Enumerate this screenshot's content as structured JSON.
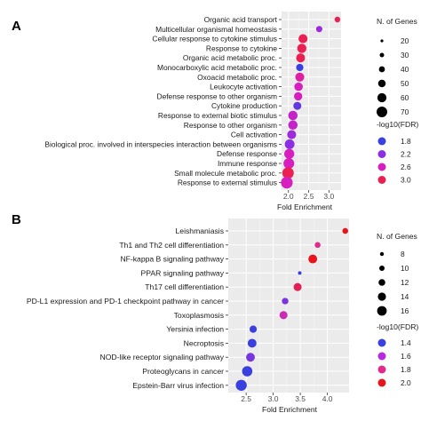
{
  "panels": [
    {
      "letter": "A"
    },
    {
      "letter": "B"
    }
  ],
  "chart_data": [
    {
      "type": "scatter",
      "panel": "A",
      "xlabel": "Fold Enrichment",
      "xticks": [
        2.0,
        2.5,
        3.0
      ],
      "xlim": [
        1.83,
        3.3
      ],
      "grid": true,
      "legend_position": "right",
      "categories": [
        "Organic acid transport",
        "Multicellular organismal homeostasis",
        "Cellular response to cytokine stimulus",
        "Response to cytokine",
        "Organic acid metabolic proc.",
        "Monocarboxylic acid metabolic proc.",
        "Oxoacid metabolic proc.",
        "Leukocyte activation",
        "Defense response to other organism",
        "Cytokine production",
        "Response to external biotic stimulus",
        "Response to other organism",
        "Cell activation",
        "Biological proc. involved in interspecies interaction between organisms",
        "Defense response",
        "Immune response",
        "Small molecule metabolic proc.",
        "Response to external stimulus"
      ],
      "points": [
        {
          "x": 3.21,
          "genes": 12,
          "log10fdr": 3.0
        },
        {
          "x": 2.76,
          "genes": 18,
          "log10fdr": 2.3
        },
        {
          "x": 2.36,
          "genes": 45,
          "log10fdr": 3.0
        },
        {
          "x": 2.33,
          "genes": 47,
          "log10fdr": 3.0
        },
        {
          "x": 2.3,
          "genes": 44,
          "log10fdr": 3.0
        },
        {
          "x": 2.28,
          "genes": 28,
          "log10fdr": 1.8
        },
        {
          "x": 2.28,
          "genes": 45,
          "log10fdr": 2.7
        },
        {
          "x": 2.25,
          "genes": 40,
          "log10fdr": 2.6
        },
        {
          "x": 2.24,
          "genes": 38,
          "log10fdr": 2.6
        },
        {
          "x": 2.22,
          "genes": 35,
          "log10fdr": 2.0
        },
        {
          "x": 2.11,
          "genes": 48,
          "log10fdr": 2.5
        },
        {
          "x": 2.11,
          "genes": 48,
          "log10fdr": 2.5
        },
        {
          "x": 2.08,
          "genes": 45,
          "log10fdr": 2.3
        },
        {
          "x": 2.03,
          "genes": 52,
          "log10fdr": 2.2
        },
        {
          "x": 2.02,
          "genes": 55,
          "log10fdr": 2.6
        },
        {
          "x": 2.01,
          "genes": 62,
          "log10fdr": 2.6
        },
        {
          "x": 1.99,
          "genes": 70,
          "log10fdr": 3.0
        },
        {
          "x": 1.96,
          "genes": 72,
          "log10fdr": 2.6
        }
      ],
      "size_legend": {
        "title": "N. of Genes",
        "values": [
          20,
          30,
          40,
          50,
          60,
          70
        ]
      },
      "color_legend": {
        "title": "-log10(FDR)",
        "values": [
          1.8,
          2.2,
          2.6,
          3.0
        ],
        "colors": [
          "#3a3fe0",
          "#8c2fe4",
          "#d61fbe",
          "#ec1f52"
        ]
      }
    },
    {
      "type": "scatter",
      "panel": "B",
      "xlabel": "Fold Enrichment",
      "xticks": [
        2.5,
        3.0,
        3.5,
        4.0
      ],
      "xlim": [
        2.17,
        4.4
      ],
      "grid": true,
      "legend_position": "right",
      "categories": [
        "Leishmaniasis",
        "Th1 and Th2 cell differentiation",
        "NF-kappa B signaling pathway",
        "PPAR signaling pathway",
        "Th17 cell differentiation",
        "PD-L1 expression and PD-1 checkpoint pathway in cancer",
        "Toxoplasmosis",
        "Yersinia infection",
        "Necroptosis",
        "NOD-like receptor signaling pathway",
        "Proteoglycans in cancer",
        "Epstein-Barr virus infection"
      ],
      "points": [
        {
          "x": 4.33,
          "genes": 10,
          "log10fdr": 2.0
        },
        {
          "x": 3.82,
          "genes": 10,
          "log10fdr": 1.8
        },
        {
          "x": 3.73,
          "genes": 14,
          "log10fdr": 2.0
        },
        {
          "x": 3.49,
          "genes": 7,
          "log10fdr": 1.3
        },
        {
          "x": 3.45,
          "genes": 13,
          "log10fdr": 1.9
        },
        {
          "x": 3.22,
          "genes": 11,
          "log10fdr": 1.5
        },
        {
          "x": 3.19,
          "genes": 13,
          "log10fdr": 1.7
        },
        {
          "x": 2.63,
          "genes": 12,
          "log10fdr": 1.4
        },
        {
          "x": 2.61,
          "genes": 14,
          "log10fdr": 1.4
        },
        {
          "x": 2.58,
          "genes": 14,
          "log10fdr": 1.5
        },
        {
          "x": 2.52,
          "genes": 16,
          "log10fdr": 1.4
        },
        {
          "x": 2.41,
          "genes": 17,
          "log10fdr": 1.3
        }
      ],
      "size_legend": {
        "title": "N. of Genes",
        "values": [
          8,
          10,
          12,
          14,
          16
        ]
      },
      "color_legend": {
        "title": "-log10(FDR)",
        "values": [
          1.4,
          1.6,
          1.8,
          2.0
        ],
        "colors": [
          "#3a3fe0",
          "#b82ae0",
          "#e02a8c",
          "#e8141c"
        ]
      }
    }
  ]
}
